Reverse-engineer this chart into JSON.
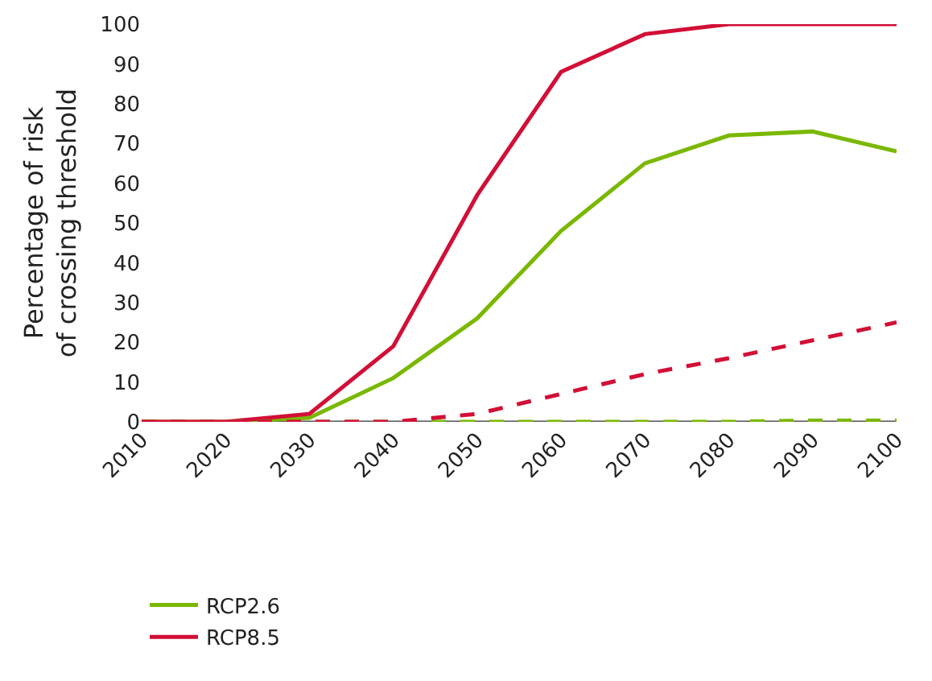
{
  "chart_data": {
    "type": "line",
    "ylabel": "Percentage of risk\nof crossing threshold",
    "x": [
      2010,
      2020,
      2030,
      2040,
      2050,
      2060,
      2070,
      2080,
      2090,
      2100
    ],
    "xlim": [
      2010,
      2100
    ],
    "xticks": [
      2010,
      2020,
      2030,
      2040,
      2050,
      2060,
      2070,
      2080,
      2090,
      2100
    ],
    "ylim": [
      0,
      100
    ],
    "yticks": [
      0,
      10,
      20,
      30,
      40,
      50,
      60,
      70,
      80,
      90,
      100
    ],
    "grid": false,
    "legend": "bottom",
    "marker": "none",
    "series": [
      {
        "name": "RCP2.6",
        "color": "#7ab800",
        "line_style": "solid",
        "values": [
          0,
          0,
          1,
          11,
          26,
          48,
          65,
          72,
          73,
          68
        ]
      },
      {
        "name": "RCP8.5",
        "color": "#d20f36",
        "line_style": "solid",
        "values": [
          0,
          0,
          2,
          19,
          57,
          88,
          97.5,
          100,
          100,
          100
        ]
      },
      {
        "color": "#7ab800",
        "line_style": "dashed",
        "values": [
          0,
          0,
          0,
          0,
          0,
          0,
          0,
          0,
          0.3,
          0.3
        ]
      },
      {
        "color": "#d20f36",
        "line_style": "dashed",
        "values": [
          0,
          0,
          0,
          0,
          2,
          7,
          12,
          16,
          20.5,
          25
        ]
      }
    ]
  }
}
